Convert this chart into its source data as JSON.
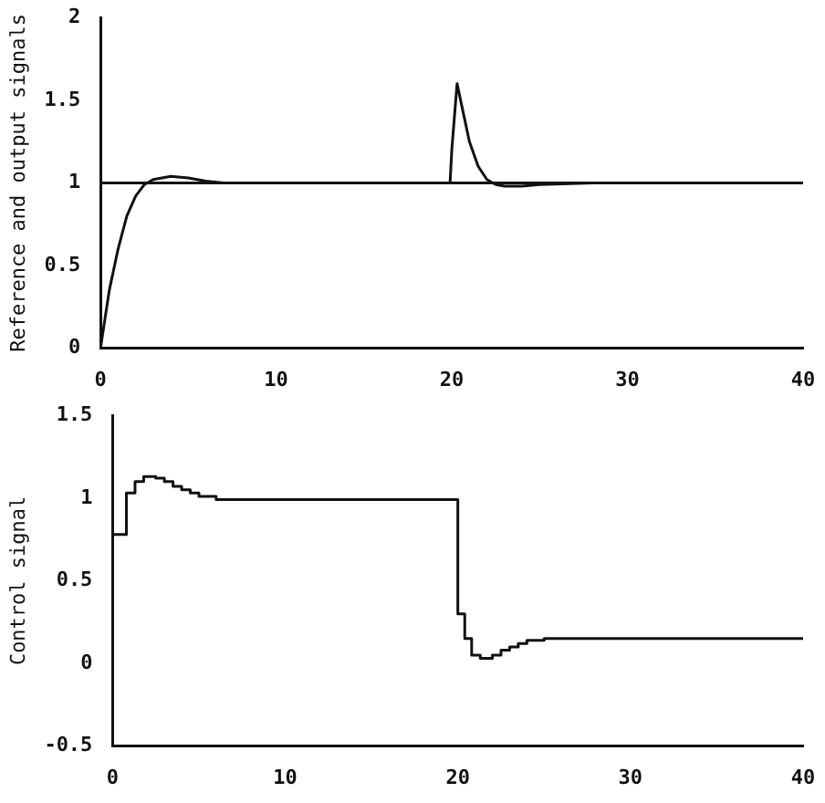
{
  "chart_data": [
    {
      "type": "line",
      "ylabel": "Reference and output signals",
      "xlim": [
        0,
        40
      ],
      "xticks": [
        0,
        10,
        20,
        30,
        40
      ],
      "ylim": [
        0,
        2
      ],
      "yticks": [
        0,
        0.5,
        1,
        1.5,
        2
      ],
      "grid": false,
      "legend": false,
      "series": [
        {
          "color": "#111111",
          "x": [
            0,
            40
          ],
          "values": [
            1,
            1
          ]
        },
        {
          "color": "#111111",
          "x": [
            0,
            0.5,
            1,
            1.5,
            2,
            2.5,
            3,
            4,
            5,
            6,
            7,
            10,
            15,
            19.9,
            20,
            20.3,
            20.7,
            21,
            21.5,
            22,
            22.5,
            23,
            24,
            25,
            28,
            40
          ],
          "values": [
            0,
            0.35,
            0.6,
            0.8,
            0.92,
            0.99,
            1.02,
            1.04,
            1.03,
            1.01,
            1,
            1,
            1,
            1,
            1.2,
            1.6,
            1.4,
            1.25,
            1.1,
            1.02,
            0.99,
            0.98,
            0.98,
            0.99,
            1,
            1
          ]
        }
      ]
    },
    {
      "type": "step",
      "ylabel": "Control signal",
      "xlim": [
        0,
        40
      ],
      "xticks": [
        0,
        10,
        20,
        30,
        40
      ],
      "ylim": [
        -0.5,
        1.5
      ],
      "yticks": [
        -0.5,
        0,
        0.5,
        1,
        1.5
      ],
      "grid": false,
      "legend": false,
      "series": [
        {
          "color": "#111111",
          "x": [
            0,
            0.8,
            1.3,
            1.8,
            2.5,
            3,
            3.5,
            4,
            4.5,
            5,
            6,
            20,
            20.4,
            20.8,
            21.3,
            22,
            22.5,
            23,
            23.5,
            24,
            25,
            40
          ],
          "values": [
            0.78,
            1.03,
            1.1,
            1.13,
            1.12,
            1.1,
            1.07,
            1.05,
            1.03,
            1.01,
            0.99,
            0.3,
            0.15,
            0.05,
            0.03,
            0.05,
            0.08,
            0.1,
            0.12,
            0.14,
            0.15,
            0.15
          ]
        }
      ]
    }
  ]
}
